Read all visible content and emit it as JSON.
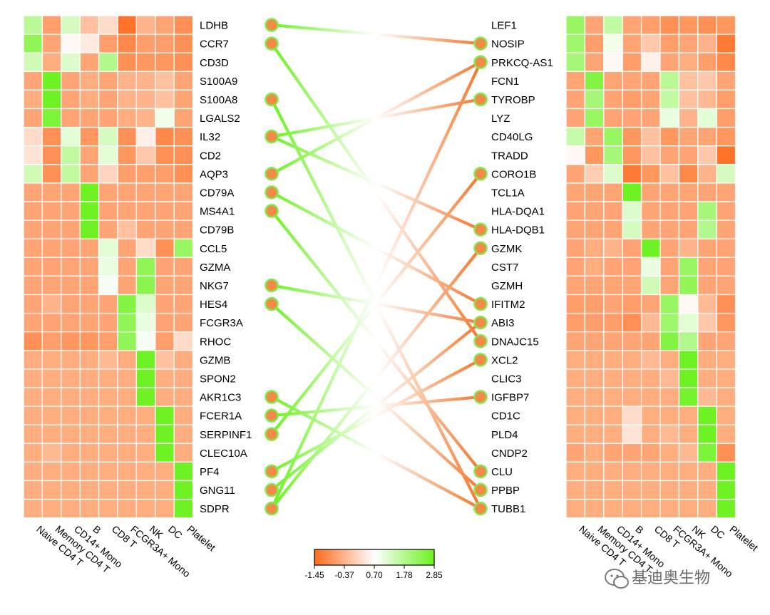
{
  "chart_data": {
    "type": "heatmap",
    "description_labels": {
      "left_genes": [
        "LDHB",
        "CCR7",
        "CD3D",
        "S100A9",
        "S100A8",
        "LGALS2",
        "IL32",
        "CD2",
        "AQP3",
        "CD79A",
        "MS4A1",
        "CD79B",
        "CCL5",
        "GZMA",
        "NKG7",
        "HES4",
        "FCGR3A",
        "RHOC",
        "GZMB",
        "SPON2",
        "AKR1C3",
        "FCER1A",
        "SERPINF1",
        "CLEC10A",
        "PF4",
        "GNG11",
        "SDPR"
      ],
      "right_genes": [
        "LEF1",
        "NOSIP",
        "PRKCQ-AS1",
        "FCN1",
        "TYROBP",
        "LYZ",
        "CD40LG",
        "TRADD",
        "CORO1B",
        "TCL1A",
        "HLA-DQA1",
        "HLA-DQB1",
        "GZMK",
        "CST7",
        "GZMH",
        "IFITM2",
        "ABI3",
        "DNAJC15",
        "XCL2",
        "CLIC3",
        "IGFBP7",
        "CD1C",
        "PLD4",
        "CNDP2",
        "CLU",
        "PPBP",
        "TUBB1"
      ]
    },
    "columns": [
      "Naive CD4 T",
      "Memory CD4 T",
      "CD14+ Mono",
      "B",
      "CD8 T",
      "FCGR3A+ Mono",
      "NK",
      "DC",
      "Platelet"
    ],
    "left_heatmap": [
      [
        1.7,
        -0.7,
        1.3,
        -0.2,
        0.2,
        -1.3,
        -0.4,
        -0.6,
        -0.9
      ],
      [
        2.3,
        -0.6,
        0.6,
        0.4,
        -0.7,
        -1.0,
        -0.7,
        -0.7,
        -0.9
      ],
      [
        1.4,
        -0.5,
        1.2,
        -0.6,
        1.8,
        -0.9,
        -0.8,
        -0.8,
        -0.9
      ],
      [
        -0.6,
        2.8,
        -0.6,
        -0.5,
        -0.6,
        -0.4,
        -0.4,
        -0.2,
        -0.6
      ],
      [
        -0.5,
        2.8,
        -0.6,
        -0.5,
        -0.6,
        -0.4,
        -0.4,
        -0.2,
        -0.6
      ],
      [
        -0.6,
        2.6,
        -0.6,
        -0.6,
        -0.6,
        -0.5,
        -0.4,
        0.9,
        -0.6
      ],
      [
        0.2,
        -0.9,
        1.1,
        -0.8,
        1.3,
        -0.9,
        0.5,
        -1.0,
        -0.9
      ],
      [
        0.3,
        -0.9,
        1.6,
        -0.6,
        1.1,
        -0.8,
        -0.1,
        -0.9,
        -0.9
      ],
      [
        1.4,
        -0.9,
        1.6,
        -0.6,
        0.1,
        -0.7,
        -0.7,
        -0.7,
        -0.9
      ],
      [
        -0.6,
        -0.6,
        -0.6,
        2.8,
        -0.6,
        -0.6,
        -0.6,
        -0.6,
        -0.6
      ],
      [
        -0.6,
        -0.6,
        -0.6,
        2.8,
        -0.6,
        -0.6,
        -0.6,
        -0.6,
        -0.6
      ],
      [
        -0.6,
        -0.6,
        -0.6,
        2.8,
        -0.6,
        -0.2,
        -0.6,
        -0.6,
        -0.6
      ],
      [
        -0.6,
        -0.6,
        -0.6,
        -0.6,
        1.1,
        -0.6,
        0.2,
        -0.9,
        2.2
      ],
      [
        -0.6,
        -0.6,
        -0.6,
        -0.6,
        1.0,
        -0.6,
        2.3,
        -0.6,
        -0.6
      ],
      [
        -0.6,
        -0.6,
        -0.6,
        -0.6,
        0.8,
        -0.6,
        2.4,
        -0.6,
        -0.6
      ],
      [
        -0.6,
        -0.4,
        -0.6,
        -0.6,
        -0.6,
        2.5,
        1.2,
        -0.6,
        -0.6
      ],
      [
        -0.6,
        -0.6,
        -0.6,
        -0.6,
        -0.6,
        2.3,
        1.0,
        -0.6,
        -0.6
      ],
      [
        -0.9,
        -0.7,
        -0.8,
        -0.8,
        -0.7,
        2.3,
        0.8,
        -0.7,
        0.2
      ],
      [
        -0.5,
        -0.5,
        -0.5,
        -0.5,
        -0.3,
        -0.5,
        2.8,
        -0.2,
        -0.5
      ],
      [
        -0.5,
        -0.5,
        -0.5,
        -0.5,
        -0.5,
        -0.5,
        2.8,
        -0.5,
        -0.5
      ],
      [
        -0.5,
        -0.5,
        -0.5,
        -0.5,
        -0.5,
        -0.5,
        2.8,
        -0.5,
        -0.5
      ],
      [
        -0.5,
        -0.5,
        -0.5,
        -0.5,
        -0.5,
        -0.5,
        -0.5,
        2.8,
        -0.5
      ],
      [
        -0.5,
        -0.5,
        -0.5,
        -0.5,
        -0.5,
        -0.5,
        -0.5,
        2.8,
        -0.5
      ],
      [
        -0.5,
        -0.3,
        -0.5,
        -0.5,
        -0.5,
        -0.5,
        -0.5,
        2.8,
        -0.5
      ],
      [
        -0.5,
        -0.5,
        -0.5,
        -0.5,
        -0.5,
        -0.5,
        -0.5,
        -0.5,
        2.8
      ],
      [
        -0.5,
        -0.5,
        -0.5,
        -0.5,
        -0.5,
        -0.5,
        -0.5,
        -0.5,
        2.8
      ],
      [
        -0.5,
        -0.5,
        -0.5,
        -0.5,
        -0.5,
        -0.5,
        -0.5,
        -0.5,
        2.8
      ]
    ],
    "right_heatmap": [
      [
        2.2,
        -0.6,
        1.6,
        -0.6,
        -0.7,
        -0.9,
        -0.8,
        -0.9,
        -0.8
      ],
      [
        2.1,
        -0.7,
        0.9,
        -0.6,
        -0.1,
        -0.7,
        -0.6,
        -0.4,
        -1.2
      ],
      [
        2.0,
        -0.6,
        0.6,
        -0.7,
        0.5,
        -0.6,
        -0.5,
        -0.7,
        -1.0
      ],
      [
        -0.6,
        2.5,
        -0.6,
        -0.6,
        -0.6,
        1.7,
        -0.2,
        -0.1,
        -0.6
      ],
      [
        -0.6,
        2.0,
        -0.6,
        -0.7,
        -0.6,
        1.6,
        -0.2,
        -0.3,
        -0.7
      ],
      [
        -0.6,
        2.2,
        -0.6,
        -0.6,
        -0.6,
        1.0,
        -0.4,
        1.1,
        -0.7
      ],
      [
        1.5,
        -0.6,
        2.2,
        -0.8,
        -0.2,
        -0.8,
        -0.6,
        -0.6,
        -0.8
      ],
      [
        0.6,
        -0.8,
        2.0,
        -0.8,
        -0.2,
        -0.6,
        -0.6,
        -0.1,
        -1.3
      ],
      [
        -0.6,
        0.0,
        1.2,
        -1.2,
        -0.8,
        -0.2,
        -1.0,
        -0.4,
        1.3
      ],
      [
        -0.6,
        -0.6,
        -0.6,
        2.8,
        -0.6,
        -0.6,
        -0.6,
        -0.6,
        -0.6
      ],
      [
        -0.6,
        -0.6,
        -0.6,
        1.2,
        -0.6,
        -0.6,
        -0.6,
        2.0,
        -0.6
      ],
      [
        -0.6,
        -0.6,
        -0.6,
        1.3,
        -0.6,
        -0.6,
        -0.6,
        1.8,
        -0.6
      ],
      [
        -0.6,
        -0.5,
        -0.4,
        -0.6,
        2.8,
        -0.6,
        -0.4,
        -0.6,
        -0.6
      ],
      [
        -0.6,
        -0.5,
        -0.6,
        -0.6,
        1.0,
        -0.6,
        2.2,
        -0.6,
        -0.6
      ],
      [
        -0.6,
        -0.6,
        -0.6,
        -0.6,
        1.4,
        -0.6,
        2.3,
        -0.6,
        -0.6
      ],
      [
        -0.7,
        -0.7,
        -0.6,
        -0.7,
        -0.6,
        2.2,
        0.6,
        -0.3,
        -0.9
      ],
      [
        -0.7,
        -0.7,
        -0.7,
        -0.9,
        -0.3,
        2.1,
        1.1,
        -0.1,
        -0.8
      ],
      [
        -0.6,
        -0.6,
        -0.6,
        -0.6,
        -0.6,
        2.5,
        1.8,
        -0.6,
        -0.6
      ],
      [
        -0.5,
        -0.5,
        -0.5,
        -0.5,
        -0.3,
        -0.5,
        2.8,
        -0.5,
        -0.5
      ],
      [
        -0.5,
        -0.5,
        -0.5,
        -0.5,
        -0.5,
        -0.3,
        2.8,
        -0.5,
        -0.5
      ],
      [
        -0.5,
        -0.5,
        -0.5,
        -0.5,
        -0.5,
        -0.5,
        2.7,
        -0.3,
        -0.5
      ],
      [
        -0.5,
        -0.5,
        -0.5,
        0.2,
        -0.5,
        -0.5,
        -0.5,
        2.8,
        -0.5
      ],
      [
        -0.5,
        -0.5,
        -0.5,
        0.3,
        -0.5,
        -0.3,
        -0.5,
        2.8,
        -0.5
      ],
      [
        -0.6,
        -0.5,
        -0.6,
        -0.6,
        -0.6,
        -0.5,
        -0.3,
        2.6,
        -0.9
      ],
      [
        -0.5,
        -0.5,
        -0.5,
        -0.5,
        -0.5,
        -0.5,
        -0.5,
        -0.5,
        2.8
      ],
      [
        -0.5,
        -0.5,
        -0.5,
        -0.5,
        -0.5,
        -0.5,
        -0.5,
        -0.5,
        2.8
      ],
      [
        -0.5,
        -0.5,
        -0.5,
        -0.5,
        -0.5,
        -0.5,
        -0.5,
        -0.5,
        2.8
      ]
    ],
    "left_nodes": [
      0,
      1,
      4,
      6,
      8,
      9,
      10,
      14,
      15,
      20,
      21,
      22,
      24,
      25,
      26
    ],
    "right_nodes": [
      1,
      2,
      4,
      8,
      11,
      12,
      15,
      16,
      17,
      18,
      20,
      24,
      25,
      26
    ],
    "connections": [
      {
        "from": 0,
        "to": 1,
        "start": "green",
        "end": "orange"
      },
      {
        "from": 1,
        "to": 17,
        "start": "green",
        "end": "orange"
      },
      {
        "from": 4,
        "to": 26,
        "start": "green",
        "end": "orange"
      },
      {
        "from": 6,
        "to": 4,
        "start": "green",
        "end": "orange"
      },
      {
        "from": 6,
        "to": 11,
        "start": "green",
        "end": "orange"
      },
      {
        "from": 8,
        "to": 2,
        "start": "green",
        "end": "orange"
      },
      {
        "from": 9,
        "to": 15,
        "start": "green",
        "end": "orange"
      },
      {
        "from": 10,
        "to": 24,
        "start": "green",
        "end": "orange"
      },
      {
        "from": 14,
        "to": 16,
        "start": "green",
        "end": "orange"
      },
      {
        "from": 15,
        "to": 25,
        "start": "green",
        "end": "orange"
      },
      {
        "from": 20,
        "to": 26,
        "start": "green",
        "end": "orange"
      },
      {
        "from": 21,
        "to": 20,
        "start": "green",
        "end": "orange"
      },
      {
        "from": 22,
        "to": 8,
        "start": "green",
        "end": "orange"
      },
      {
        "from": 24,
        "to": 18,
        "start": "green",
        "end": "orange"
      },
      {
        "from": 25,
        "to": 16,
        "start": "green",
        "end": "orange"
      },
      {
        "from": 26,
        "to": 2,
        "start": "green",
        "end": "orange"
      },
      {
        "from": 26,
        "to": 12,
        "start": "green",
        "end": "orange"
      }
    ],
    "color_scale": {
      "min": -1.45,
      "max": 2.85,
      "stops": [
        {
          "value": -1.45,
          "color": "#ff6a1a"
        },
        {
          "value": 0.7,
          "color": "#ffffff"
        },
        {
          "value": 2.85,
          "color": "#6bf21e"
        }
      ],
      "ticks": [
        "-1.45",
        "-0.37",
        "0.70",
        "1.78",
        "2.85"
      ]
    },
    "colors": {
      "node_fill": "#f48a48",
      "node_stroke": "#84e84a",
      "cell_border": "#ffffff"
    }
  },
  "watermark": {
    "text": "基迪奥生物"
  }
}
